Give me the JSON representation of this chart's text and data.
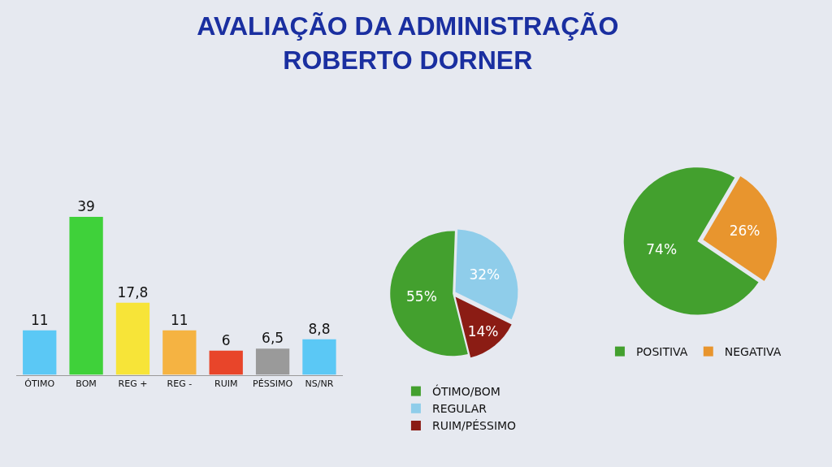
{
  "chart_data": [
    {
      "type": "bar",
      "title": "AVALIAÇÃO DA ADMINISTRAÇÃO\nROBERTO DORNER",
      "categories": [
        "ÓTIMO",
        "BOM",
        "REG +",
        "REG -",
        "RUIM",
        "PÉSSIMO",
        "NS/NR"
      ],
      "values": [
        11,
        39,
        17.8,
        11,
        6,
        6.5,
        8.8
      ],
      "value_labels": [
        "11",
        "39",
        "17,8",
        "11",
        "6",
        "6,5",
        "8,8"
      ],
      "colors": [
        "#5bc8f5",
        "#3fd13a",
        "#f7e438",
        "#f5b342",
        "#e8452a",
        "#9a9a9a",
        "#5bc8f5"
      ],
      "tick_labels": "x"
    },
    {
      "type": "pie",
      "categories": [
        "ÓTIMO/BOM",
        "REGULAR",
        "RUIM/PÉSSIMO"
      ],
      "values": [
        55,
        32,
        14
      ],
      "value_labels": [
        "55%",
        "32%",
        "14%"
      ],
      "colors": [
        "#43a02e",
        "#8fcdea",
        "#8b1c14"
      ],
      "legend": "bottom"
    },
    {
      "type": "pie",
      "categories": [
        "POSITIVA",
        "NEGATIVA"
      ],
      "values": [
        74,
        26
      ],
      "value_labels": [
        "74%",
        "26%"
      ],
      "colors": [
        "#43a02e",
        "#e8952e"
      ],
      "legend": "bottom"
    }
  ]
}
